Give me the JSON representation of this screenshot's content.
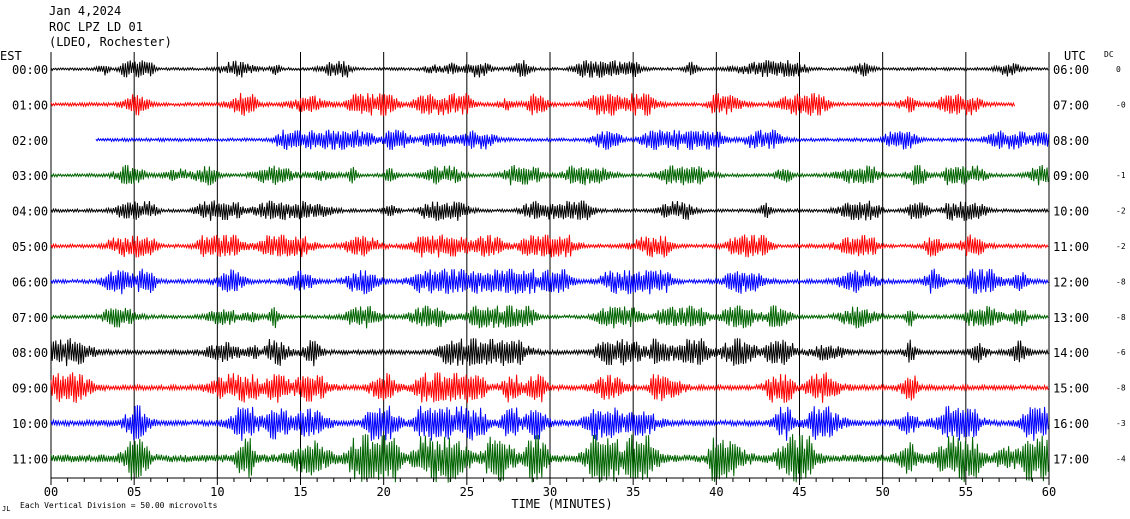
{
  "header": {
    "date": "Jan 4,2024",
    "station": "ROC LPZ LD 01",
    "network": "(LDEO, Rochester)"
  },
  "axis_labels": {
    "left_tz": "EST",
    "right_tz": "UTC",
    "dc": "DC",
    "xlabel": "TIME (MINUTES)"
  },
  "footnote": "Each Vertical Division =   50.00 microvolts",
  "footnote_mark": "JL",
  "colors": {
    "black": "#000000",
    "red": "#ff0000",
    "blue": "#0000ff",
    "green": "#006400",
    "grid": "#000000"
  },
  "chart_data": {
    "type": "line",
    "title": "ROC LPZ LD 01",
    "xlabel": "TIME (MINUTES)",
    "xlim": [
      0,
      60
    ],
    "x_ticks": [
      "00",
      "05",
      "10",
      "15",
      "20",
      "25",
      "30",
      "35",
      "40",
      "45",
      "50",
      "55",
      "60"
    ],
    "grid": true,
    "rows": [
      {
        "est": "00:00",
        "utc": "06:00",
        "dc": "0",
        "color": "black",
        "start_min": 0,
        "end_min": 60,
        "amplitude": 0.35
      },
      {
        "est": "01:00",
        "utc": "07:00",
        "dc": "-0",
        "color": "red",
        "start_min": 0,
        "end_min": 58,
        "amplitude": 0.45
      },
      {
        "est": "02:00",
        "utc": "08:00",
        "dc": "",
        "color": "blue",
        "start_min": 2.7,
        "end_min": 60,
        "amplitude": 0.4
      },
      {
        "est": "03:00",
        "utc": "09:00",
        "dc": "-1",
        "color": "green",
        "start_min": 0,
        "end_min": 60,
        "amplitude": 0.4
      },
      {
        "est": "04:00",
        "utc": "10:00",
        "dc": "-2",
        "color": "black",
        "start_min": 0,
        "end_min": 60,
        "amplitude": 0.4
      },
      {
        "est": "05:00",
        "utc": "11:00",
        "dc": "-2",
        "color": "red",
        "start_min": 0,
        "end_min": 60,
        "amplitude": 0.45
      },
      {
        "est": "06:00",
        "utc": "12:00",
        "dc": "-8",
        "color": "blue",
        "start_min": 0,
        "end_min": 60,
        "amplitude": 0.5
      },
      {
        "est": "07:00",
        "utc": "13:00",
        "dc": "-8",
        "color": "green",
        "start_min": 0,
        "end_min": 60,
        "amplitude": 0.45
      },
      {
        "est": "08:00",
        "utc": "14:00",
        "dc": "-6",
        "color": "black",
        "start_min": 0,
        "end_min": 60,
        "amplitude": 0.55
      },
      {
        "est": "09:00",
        "utc": "15:00",
        "dc": "-8",
        "color": "red",
        "start_min": 0,
        "end_min": 60,
        "amplitude": 0.6
      },
      {
        "est": "10:00",
        "utc": "16:00",
        "dc": "-3",
        "color": "blue",
        "start_min": 0,
        "end_min": 60,
        "amplitude": 0.7
      },
      {
        "est": "11:00",
        "utc": "17:00",
        "dc": "-4",
        "color": "green",
        "start_min": 0,
        "end_min": 60,
        "amplitude": 0.95
      }
    ]
  }
}
